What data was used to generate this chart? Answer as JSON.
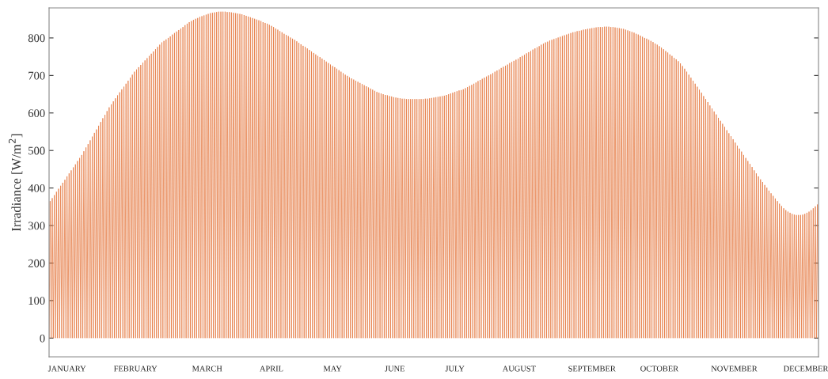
{
  "chart_data": {
    "type": "line",
    "ylabel": "Irradiance [W/m$^{2}$]",
    "ylim": [
      -50,
      880
    ],
    "yticks": [
      0,
      100,
      200,
      300,
      400,
      500,
      600,
      700,
      800
    ],
    "grid": false,
    "marker": "none",
    "line_style": "solid",
    "categories": [
      null,
      null,
      null,
      null,
      null,
      null,
      null,
      null,
      null,
      null,
      null,
      null,
      null,
      null,
      null,
      null,
      null,
      "JANUARY",
      null,
      null,
      null,
      null,
      null,
      null,
      null,
      null,
      null,
      null,
      null,
      null,
      null,
      null,
      null,
      null,
      null,
      null,
      null,
      null,
      null,
      null,
      null,
      null,
      null,
      null,
      null,
      null,
      null,
      null,
      null,
      null,
      null,
      null,
      null,
      null,
      null,
      null,
      null,
      null,
      null,
      null,
      null,
      null,
      null,
      null,
      null,
      null,
      null,
      null,
      null,
      null,
      null,
      null,
      null,
      null,
      null,
      null,
      null,
      null,
      null,
      null,
      null,
      null,
      "FEBRUARY",
      null,
      null,
      null,
      null,
      null,
      null,
      null,
      null,
      null,
      null,
      null,
      null,
      null,
      null,
      null,
      null,
      null,
      null,
      null,
      null,
      null,
      null,
      null,
      null,
      null,
      null,
      null,
      null,
      null,
      null,
      null,
      null,
      null,
      null,
      null,
      null,
      null,
      null,
      null,
      null,
      null,
      null,
      null,
      null,
      null,
      null,
      null,
      null,
      null,
      null,
      null,
      null,
      null,
      null,
      null,
      null,
      null,
      null,
      null,
      null,
      null,
      null,
      null,
      null,
      null,
      null,
      null,
      "MARCH",
      null,
      null,
      null,
      null,
      null,
      null,
      null,
      null,
      null,
      null,
      null,
      null,
      null,
      null,
      null,
      null,
      null,
      null,
      null,
      null,
      null,
      null,
      null,
      null,
      null,
      null,
      null,
      null,
      null,
      null,
      null,
      null,
      null,
      null,
      null,
      null,
      null,
      null,
      null,
      null,
      null,
      null,
      null,
      null,
      null,
      null,
      null,
      null,
      null,
      null,
      null,
      null,
      null,
      null,
      null,
      null,
      null,
      null,
      null,
      null,
      "APRIL",
      null,
      null,
      null,
      null,
      null,
      null,
      null,
      null,
      null,
      null,
      null,
      null,
      null,
      null,
      null,
      null,
      null,
      null,
      null,
      null,
      null,
      null,
      null,
      null,
      null,
      null,
      null,
      null,
      null,
      null,
      null,
      null,
      null,
      null,
      null,
      null,
      null,
      null,
      null,
      null,
      null,
      null,
      null,
      null,
      null,
      null,
      null,
      null,
      null,
      null,
      null,
      null,
      null,
      null,
      null,
      null,
      null,
      "MAY",
      null,
      null,
      null,
      null,
      null,
      null,
      null,
      null,
      null,
      null,
      null,
      null,
      null,
      null,
      null,
      null,
      null,
      null,
      null,
      null,
      null,
      null,
      null,
      null,
      null,
      null,
      null,
      null,
      null,
      null,
      null,
      null,
      null,
      null,
      null,
      null,
      null,
      null,
      null,
      null,
      null,
      null,
      null,
      null,
      null,
      null,
      null,
      null,
      null,
      null,
      null,
      null,
      null,
      null,
      null,
      null,
      null,
      null,
      "JUNE",
      null,
      null,
      null,
      null,
      null,
      null,
      null,
      null,
      null,
      null,
      null,
      null,
      null,
      null,
      null,
      null,
      null,
      null,
      null,
      null,
      null,
      null,
      null,
      null,
      null,
      null,
      null,
      null,
      null,
      null,
      null,
      null,
      null,
      null,
      null,
      null,
      null,
      null,
      null,
      null,
      null,
      null,
      null,
      null,
      null,
      null,
      null,
      null,
      null,
      null,
      null,
      null,
      null,
      null,
      null,
      null,
      "JULY",
      null,
      null,
      null,
      null,
      null,
      null,
      null,
      null,
      null,
      null,
      null,
      null,
      null,
      null,
      null,
      null,
      null,
      null,
      null,
      null,
      null,
      null,
      null,
      null,
      null,
      null,
      null,
      null,
      null,
      null,
      null,
      null,
      null,
      null,
      null,
      null,
      null,
      null,
      null,
      null,
      null,
      null,
      null,
      null,
      null,
      null,
      null,
      null,
      null,
      null,
      null,
      null,
      null,
      null,
      null,
      null,
      null,
      null,
      null,
      null,
      "AUGUST",
      null,
      null,
      null,
      null,
      null,
      null,
      null,
      null,
      null,
      null,
      null,
      null,
      null,
      null,
      null,
      null,
      null,
      null,
      null,
      null,
      null,
      null,
      null,
      null,
      null,
      null,
      null,
      null,
      null,
      null,
      null,
      null,
      null,
      null,
      null,
      null,
      null,
      null,
      null,
      null,
      null,
      null,
      null,
      null,
      null,
      null,
      null,
      null,
      null,
      null,
      null,
      null,
      null,
      null,
      null,
      null,
      null,
      null,
      null,
      null,
      null,
      null,
      null,
      null,
      null,
      null,
      null,
      null,
      "SEPTEMBER",
      null,
      null,
      null,
      null,
      null,
      null,
      null,
      null,
      null,
      null,
      null,
      null,
      null,
      null,
      null,
      null,
      null,
      null,
      null,
      null,
      null,
      null,
      null,
      null,
      null,
      null,
      null,
      null,
      null,
      null,
      null,
      null,
      null,
      null,
      null,
      null,
      null,
      null,
      null,
      null,
      null,
      null,
      null,
      null,
      null,
      null,
      null,
      null,
      null,
      null,
      null,
      null,
      null,
      null,
      null,
      null,
      null,
      null,
      null,
      null,
      null,
      null,
      null,
      "OCTOBER",
      null,
      null,
      null,
      null,
      null,
      null,
      null,
      null,
      null,
      null,
      null,
      null,
      null,
      null,
      null,
      null,
      null,
      null,
      null,
      null,
      null,
      null,
      null,
      null,
      null,
      null,
      null,
      null,
      null,
      null,
      null,
      null,
      null,
      null,
      null,
      null,
      null,
      null,
      null,
      null,
      null,
      null,
      null,
      null,
      null,
      null,
      null,
      null,
      null,
      null,
      null,
      null,
      null,
      null,
      null,
      null,
      null,
      null,
      null,
      null,
      null,
      null,
      null,
      null,
      null,
      null,
      null,
      null,
      null,
      null,
      "NOVEMBER",
      null,
      null,
      null,
      null,
      null,
      null,
      null,
      null,
      null,
      null,
      null,
      null,
      null,
      null,
      null,
      null,
      null,
      null,
      null,
      null,
      null,
      null,
      null,
      null,
      null,
      null,
      null,
      null,
      null,
      null,
      null,
      null,
      null,
      null,
      null,
      null,
      null,
      null,
      null,
      null,
      null,
      null,
      null,
      null,
      null,
      null,
      null,
      null,
      null,
      null,
      null,
      null,
      null,
      null,
      null,
      null,
      null,
      null,
      null,
      null,
      null,
      null,
      null,
      null,
      null,
      null,
      null,
      "DECEMBER",
      null,
      null,
      null,
      null,
      null,
      null,
      null,
      null,
      null,
      null,
      null,
      null
    ],
    "series": [
      {
        "color": "#e5773f",
        "values": [
          0,
          365,
          0,
          373,
          0,
          381,
          0,
          390,
          0,
          398,
          0,
          406,
          0,
          414,
          0,
          422,
          0,
          431,
          0,
          439,
          0,
          447,
          0,
          455,
          0,
          463,
          0,
          472,
          0,
          480,
          0,
          488,
          0,
          498,
          0,
          508,
          0,
          517,
          0,
          527,
          0,
          537,
          0,
          547,
          0,
          556,
          0,
          566,
          0,
          576,
          0,
          586,
          0,
          595,
          0,
          605,
          0,
          615,
          0,
          623,
          0,
          631,
          0,
          639,
          0,
          647,
          0,
          655,
          0,
          663,
          0,
          670,
          0,
          678,
          0,
          686,
          0,
          694,
          0,
          702,
          0,
          710,
          0,
          716,
          0,
          722,
          0,
          728,
          0,
          734,
          0,
          740,
          0,
          746,
          0,
          752,
          0,
          758,
          0,
          764,
          0,
          770,
          0,
          776,
          0,
          782,
          0,
          788,
          0,
          792,
          0,
          796,
          0,
          800,
          0,
          804,
          0,
          809,
          0,
          813,
          0,
          817,
          0,
          821,
          0,
          825,
          0,
          829,
          0,
          834,
          0,
          838,
          0,
          842,
          0,
          845,
          0,
          848,
          0,
          851,
          0,
          853,
          0,
          856,
          0,
          858,
          0,
          860,
          0,
          862,
          0,
          864,
          0,
          866,
          0,
          867,
          0,
          868,
          0,
          869,
          0,
          870,
          0,
          870,
          0,
          870,
          0,
          870,
          0,
          869,
          0,
          869,
          0,
          868,
          0,
          867,
          0,
          866,
          0,
          865,
          0,
          864,
          0,
          863,
          0,
          861,
          0,
          859,
          0,
          857,
          0,
          855,
          0,
          853,
          0,
          851,
          0,
          849,
          0,
          847,
          0,
          845,
          0,
          842,
          0,
          840,
          0,
          838,
          0,
          835,
          0,
          832,
          0,
          829,
          0,
          825,
          0,
          822,
          0,
          818,
          0,
          815,
          0,
          811,
          0,
          808,
          0,
          805,
          0,
          801,
          0,
          798,
          0,
          795,
          0,
          791,
          0,
          787,
          0,
          783,
          0,
          779,
          0,
          776,
          0,
          772,
          0,
          768,
          0,
          764,
          0,
          760,
          0,
          756,
          0,
          752,
          0,
          749,
          0,
          745,
          0,
          741,
          0,
          737,
          0,
          733,
          0,
          729,
          0,
          725,
          0,
          722,
          0,
          718,
          0,
          714,
          0,
          710,
          0,
          706,
          0,
          702,
          0,
          699,
          0,
          695,
          0,
          692,
          0,
          689,
          0,
          686,
          0,
          683,
          0,
          680,
          0,
          677,
          0,
          674,
          0,
          671,
          0,
          668,
          0,
          665,
          0,
          662,
          0,
          659,
          0,
          656,
          0,
          654,
          0,
          652,
          0,
          650,
          0,
          648,
          0,
          647,
          0,
          645,
          0,
          644,
          0,
          642,
          0,
          641,
          0,
          640,
          0,
          639,
          0,
          638,
          0,
          638,
          0,
          637,
          0,
          637,
          0,
          637,
          0,
          637,
          0,
          637,
          0,
          637,
          0,
          637,
          0,
          637,
          0,
          637,
          0,
          638,
          0,
          638,
          0,
          639,
          0,
          640,
          0,
          641,
          0,
          642,
          0,
          643,
          0,
          644,
          0,
          645,
          0,
          646,
          0,
          648,
          0,
          650,
          0,
          652,
          0,
          654,
          0,
          656,
          0,
          658,
          0,
          660,
          0,
          661,
          0,
          663,
          0,
          666,
          0,
          669,
          0,
          672,
          0,
          675,
          0,
          678,
          0,
          681,
          0,
          685,
          0,
          688,
          0,
          691,
          0,
          694,
          0,
          697,
          0,
          700,
          0,
          703,
          0,
          706,
          0,
          710,
          0,
          713,
          0,
          716,
          0,
          720,
          0,
          723,
          0,
          726,
          0,
          729,
          0,
          733,
          0,
          736,
          0,
          739,
          0,
          742,
          0,
          745,
          0,
          749,
          0,
          752,
          0,
          755,
          0,
          759,
          0,
          762,
          0,
          765,
          0,
          769,
          0,
          772,
          0,
          775,
          0,
          778,
          0,
          782,
          0,
          785,
          0,
          788,
          0,
          790,
          0,
          793,
          0,
          795,
          0,
          797,
          0,
          799,
          0,
          801,
          0,
          803,
          0,
          805,
          0,
          807,
          0,
          809,
          0,
          811,
          0,
          813,
          0,
          815,
          0,
          816,
          0,
          818,
          0,
          819,
          0,
          820,
          0,
          822,
          0,
          823,
          0,
          824,
          0,
          825,
          0,
          826,
          0,
          827,
          0,
          828,
          0,
          829,
          0,
          829,
          0,
          829,
          0,
          830,
          0,
          830,
          0,
          830,
          0,
          829,
          0,
          829,
          0,
          828,
          0,
          827,
          0,
          826,
          0,
          825,
          0,
          824,
          0,
          822,
          0,
          820,
          0,
          818,
          0,
          816,
          0,
          814,
          0,
          811,
          0,
          809,
          0,
          806,
          0,
          803,
          0,
          800,
          0,
          798,
          0,
          795,
          0,
          792,
          0,
          789,
          0,
          785,
          0,
          782,
          0,
          778,
          0,
          774,
          0,
          770,
          0,
          765,
          0,
          761,
          0,
          756,
          0,
          752,
          0,
          747,
          0,
          743,
          0,
          738,
          0,
          732,
          0,
          725,
          0,
          718,
          0,
          710,
          0,
          702,
          0,
          694,
          0,
          686,
          0,
          678,
          0,
          670,
          0,
          662,
          0,
          654,
          0,
          645,
          0,
          637,
          0,
          629,
          0,
          620,
          0,
          612,
          0,
          604,
          0,
          596,
          0,
          587,
          0,
          579,
          0,
          571,
          0,
          563,
          0,
          554,
          0,
          546,
          0,
          538,
          0,
          530,
          0,
          521,
          0,
          513,
          0,
          505,
          0,
          497,
          0,
          488,
          0,
          480,
          0,
          472,
          0,
          464,
          0,
          456,
          0,
          447,
          0,
          439,
          0,
          431,
          0,
          423,
          0,
          416,
          0,
          408,
          0,
          401,
          0,
          393,
          0,
          386,
          0,
          379,
          0,
          372,
          0,
          365,
          0,
          358,
          0,
          352,
          0,
          346,
          0,
          341,
          0,
          337,
          0,
          334,
          0,
          331,
          0,
          329,
          0,
          328,
          0,
          328,
          0,
          328,
          0,
          329,
          0,
          331,
          0,
          334,
          0,
          337,
          0,
          341,
          0,
          346,
          0,
          351,
          0,
          356,
          0
        ]
      }
    ]
  }
}
